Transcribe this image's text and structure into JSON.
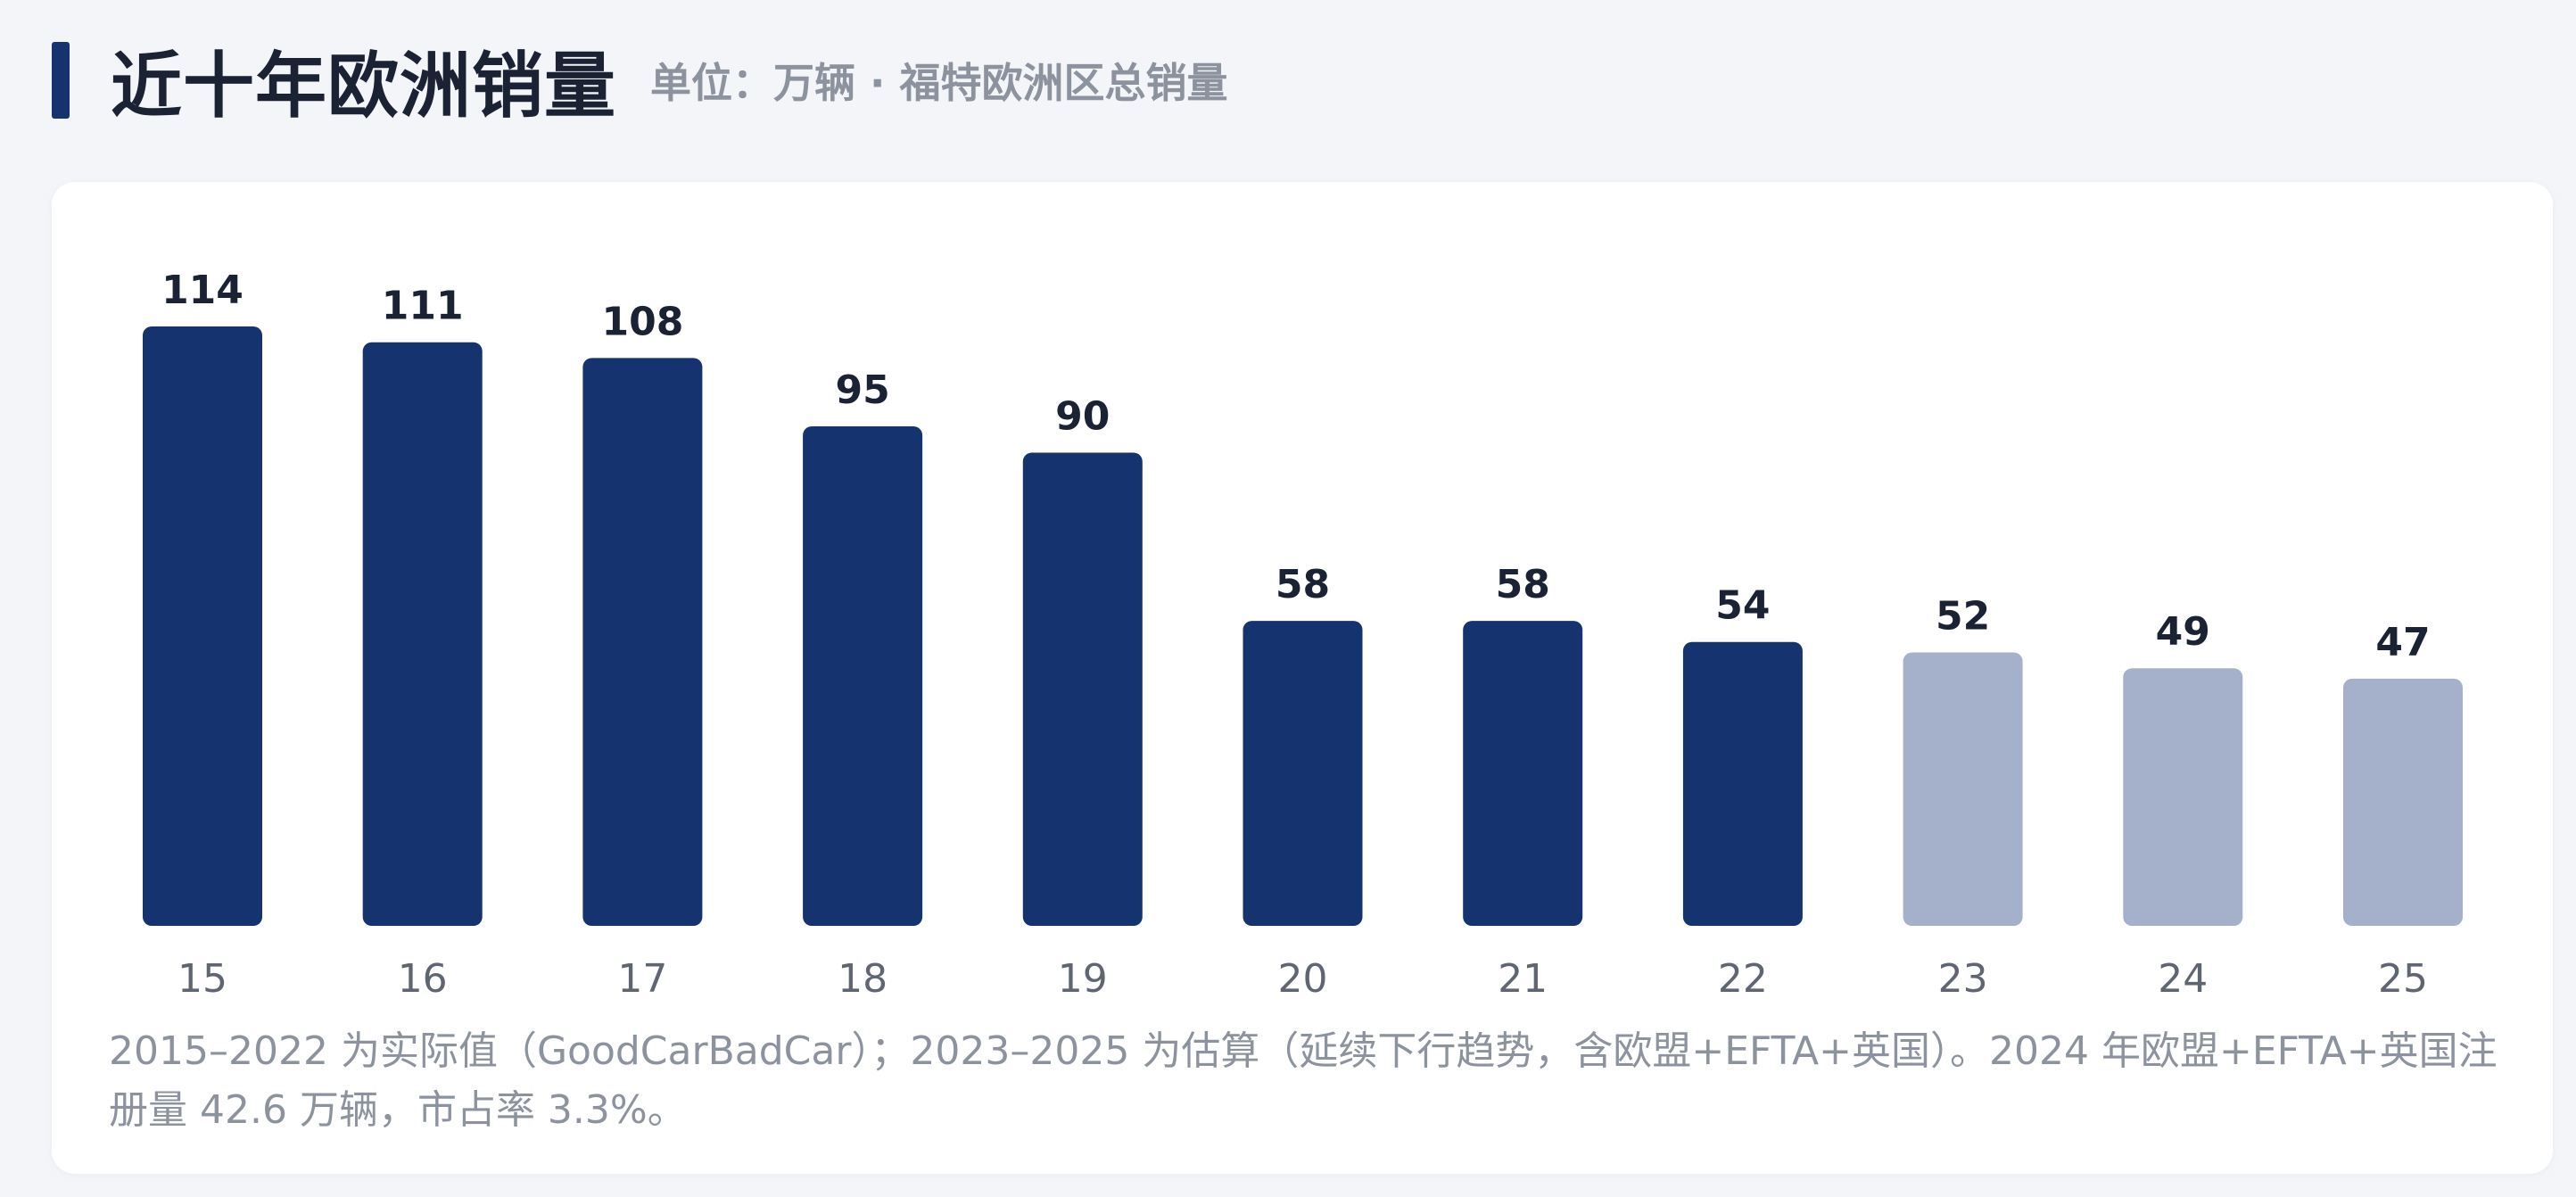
{
  "header": {
    "title": "近十年欧洲销量",
    "subtitle": "单位：万辆 · 福特欧洲区总销量"
  },
  "colors": {
    "actual": "#14336f",
    "estimate": "#a5b1ca",
    "accent": "#14336f"
  },
  "chart_data": {
    "type": "bar",
    "categories": [
      "15",
      "16",
      "17",
      "18",
      "19",
      "20",
      "21",
      "22",
      "23",
      "24",
      "25"
    ],
    "values": [
      114,
      111,
      108,
      95,
      90,
      58,
      58,
      54,
      52,
      49,
      47
    ],
    "estimated": [
      false,
      false,
      false,
      false,
      false,
      false,
      false,
      false,
      true,
      true,
      true
    ],
    "data_labels": [
      "114",
      "111",
      "108",
      "95",
      "90",
      "58",
      "58",
      "54",
      "52",
      "49",
      "47"
    ],
    "grid": false,
    "legend": "none"
  },
  "note": "2015–2022 为实际值（GoodCarBadCar）；2023–2025 为估算（延续下行趋势，含欧盟+EFTA+英国）。2024 年欧盟+EFTA+英国注册量 42.6 万辆，市占率 3.3%。"
}
